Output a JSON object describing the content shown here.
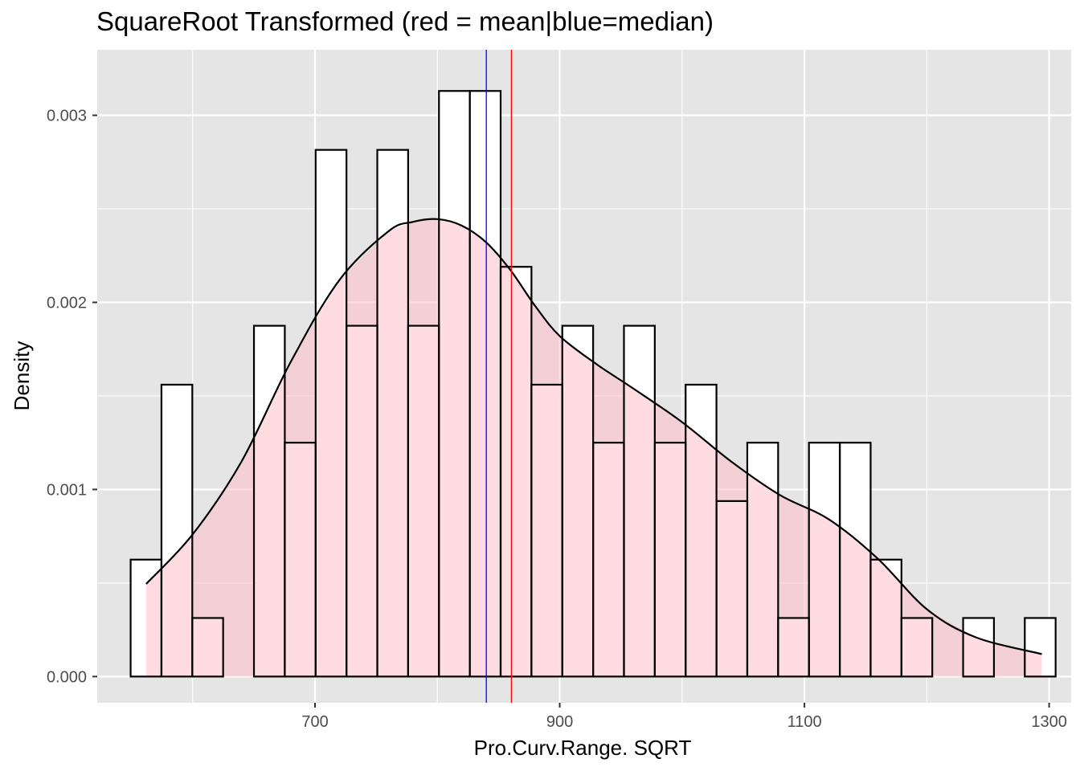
{
  "chart_data": {
    "type": "bar",
    "title": "SquareRoot Transformed (red = mean|blue=median)",
    "xlabel": "Pro.Curv.Range. SQRT",
    "ylabel": "Density",
    "xlim": [
      522,
      1318
    ],
    "ylim": [
      -0.00014,
      0.00335
    ],
    "x_ticks": [
      700,
      900,
      1100,
      1300
    ],
    "x_minor_ticks": [
      600,
      800,
      1000,
      1200
    ],
    "y_ticks": [
      0,
      0.001,
      0.002,
      0.003
    ],
    "y_tick_labels": [
      "0.000",
      "0.001",
      "0.002",
      "0.003"
    ],
    "bin_width": 25.2,
    "bin_starts": [
      549.3,
      574.5,
      599.7,
      624.9,
      650.1,
      675.3,
      700.5,
      725.7,
      750.9,
      776.1,
      801.3,
      826.5,
      851.7,
      876.9,
      902.1,
      927.3,
      952.5,
      977.7,
      1002.9,
      1028.1,
      1053.3,
      1078.5,
      1103.7,
      1128.9,
      1154.1,
      1179.3,
      1204.5,
      1229.7,
      1254.9,
      1280.1
    ],
    "histogram": {
      "name": "histogram",
      "values": [
        0.000625,
        0.00156,
        0.000313,
        0,
        0.001875,
        0.00125,
        0.002815,
        0.001875,
        0.002815,
        0.001875,
        0.00313,
        0.00313,
        0.00219,
        0.00156,
        0.001875,
        0.00125,
        0.001875,
        0.00125,
        0.00156,
        0.000938,
        0.00125,
        0.000313,
        0.00125,
        0.00125,
        0.000625,
        0.000313,
        0,
        0.000313,
        0,
        0.000313
      ],
      "fill": "#ffffff",
      "stroke": "#000000"
    },
    "density": {
      "name": "density",
      "x": [
        562,
        600,
        640,
        680,
        720,
        760,
        780,
        800,
        820,
        840,
        860,
        880,
        900,
        930,
        960,
        1000,
        1040,
        1080,
        1120,
        1160,
        1200,
        1240,
        1294
      ],
      "y": [
        0.000495,
        0.00076,
        0.00115,
        0.00168,
        0.00212,
        0.00238,
        0.00243,
        0.002445,
        0.00241,
        0.00232,
        0.00217,
        0.00198,
        0.00182,
        0.00167,
        0.00154,
        0.00136,
        0.00115,
        0.00097,
        0.00084,
        0.00063,
        0.00036,
        0.00021,
        0.00012
      ],
      "fill": "#ffc0cb",
      "fill_opacity": 0.55,
      "stroke": "#000000"
    },
    "vlines": [
      {
        "name": "mean",
        "x": 860.5,
        "color": "#ff0000"
      },
      {
        "name": "median",
        "x": 840,
        "color": "#0000ff"
      }
    ],
    "panel_background": "#e5e5e5",
    "grid": true,
    "grid_color": "#ffffff",
    "legend": "none"
  }
}
